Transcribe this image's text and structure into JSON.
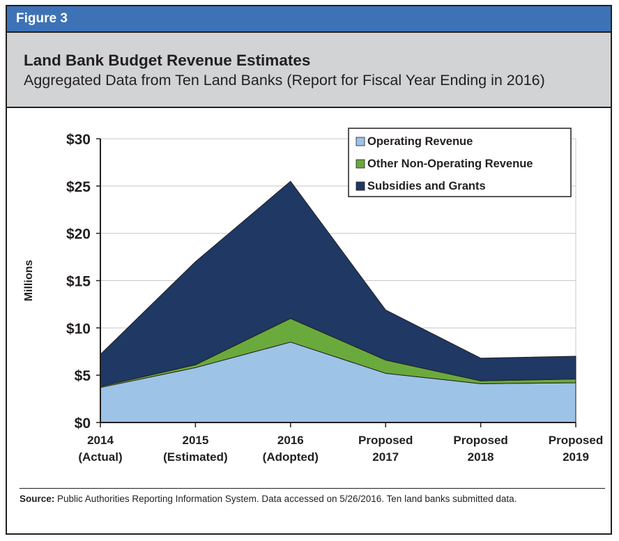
{
  "figure_label": "Figure 3",
  "title": "Land Bank Budget Revenue Estimates",
  "subtitle": "Aggregated Data from Ten Land Banks (Report for Fiscal Year Ending in 2016)",
  "source_label": "Source:",
  "source_text": "Public Authorities Reporting Information System. Data accessed on 5/26/2016. Ten land banks submitted data.",
  "colors": {
    "header_bar": "#3e72b7",
    "title_band": "#d1d3d4",
    "operating": "#9dc3e6",
    "other": "#6aaa3c",
    "subsidies": "#1f3864"
  },
  "chart_data": {
    "type": "area",
    "stacked": true,
    "ylabel": "Millions",
    "ylim": [
      0,
      30
    ],
    "yticks": [
      0,
      5,
      10,
      15,
      20,
      25,
      30
    ],
    "ytick_labels": [
      "$0",
      "$5",
      "$10",
      "$15",
      "$20",
      "$25",
      "$30"
    ],
    "categories": [
      [
        "2014",
        "(Actual)"
      ],
      [
        "2015",
        "(Estimated)"
      ],
      [
        "2016",
        "(Adopted)"
      ],
      [
        "Proposed",
        "2017"
      ],
      [
        "Proposed",
        "2018"
      ],
      [
        "Proposed",
        "2019"
      ]
    ],
    "series": [
      {
        "name": "Operating Revenue",
        "color": "#9dc3e6",
        "values": [
          3.7,
          5.8,
          8.5,
          5.2,
          4.1,
          4.2
        ]
      },
      {
        "name": "Other Non-Operating Revenue",
        "color": "#6aaa3c",
        "values": [
          0.1,
          0.3,
          2.5,
          1.4,
          0.3,
          0.4
        ]
      },
      {
        "name": "Subsidies and Grants",
        "color": "#1f3864",
        "values": [
          3.4,
          10.9,
          14.5,
          5.3,
          2.4,
          2.4
        ]
      }
    ],
    "legend_position": "top-right",
    "grid": true
  }
}
